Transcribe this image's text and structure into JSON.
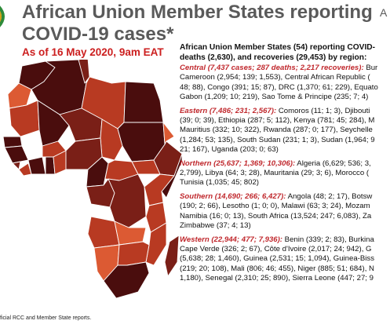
{
  "header": {
    "title_line1": "African Union Member States reporting",
    "title_line2": "COVID-19 cases*",
    "as_of": "As of 16 May 2020, 9am EAT",
    "corner_letter": "A"
  },
  "summary": {
    "lead_line1": "African Union Member States (54) reporting COVID-",
    "lead_line2": "deaths (2,630), and recoveries (29,453) by region:"
  },
  "regions": [
    {
      "name": "Central (7,437 cases; 287 deaths; 2,217 recoveries):",
      "first_tail": " Bur",
      "lines": [
        "Cameroon (2,954; 139; 1,553), Central African Republic (",
        "48; 88), Congo (391; 15; 87), DRC (1,370; 61; 229), Equato",
        "Gabon (1,209; 10; 219), Sao Tome & Principe (235; 7; 4)"
      ]
    },
    {
      "name": "Eastern (7,486; 231; 2,567):",
      "first_tail": " Comoros (11; 1; 3), Djibouti",
      "lines": [
        "(39; 0; 39), Ethiopia (287; 5; 112), Kenya (781; 45; 284), M",
        "Mauritius (332; 10; 322), Rwanda (287; 0; 177), Seychelle",
        "(1,284; 53; 135), South Sudan (231; 1; 3), Sudan (1,964; 9",
        "21; 167), Uganda (203; 0; 63)"
      ]
    },
    {
      "name": "Northern (25,637; 1,369; 10,306):",
      "first_tail": " Algeria (6,629; 536; 3,",
      "lines": [
        "2,799), Libya (64; 3; 28), Mauritania (29; 3; 6), Morocco (",
        "Tunisia (1,035; 45; 802)"
      ]
    },
    {
      "name": "Southern (14,690; 266; 6,427):",
      "first_tail": " Angola (48; 2; 17), Botsw",
      "lines": [
        "(190; 2; 66), Lesotho (1; 0; 0), Malawi (63; 3; 24), Mozam",
        "Namibia (16; 0; 13), South Africa (13,524; 247; 6,083), Za",
        "Zimbabwe (37; 4; 13)"
      ]
    },
    {
      "name": "Western (22,944; 477; 7,936):",
      "first_tail": " Benin (339; 2; 83), Burkina",
      "lines": [
        "Cape Verde (326; 2; 67), Côte d'Ivoire (2,017; 24; 942), G",
        "(5,638; 28; 1,460), Guinea (2,531; 15; 1,094), Guinea-Biss",
        "(219; 20; 108), Mali (806; 46; 455), Niger (885; 51; 684), N",
        "1,180), Senegal (2,310; 25; 890), Sierra Leone (447; 27; 9"
      ]
    }
  ],
  "footer": "ficial RCC and Member State reports.",
  "colors": {
    "title": "#5a5a5a",
    "date": "#cc1f1f",
    "region_label": "#c0282d",
    "map_darkest": "#4a0d0d",
    "map_dark": "#7a1f17",
    "map_mid": "#b83a22",
    "map_light": "#dc5a33",
    "border": "#ffffff"
  }
}
